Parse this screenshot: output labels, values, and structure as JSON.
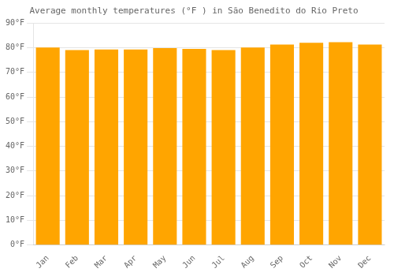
{
  "chart_data": {
    "type": "bar",
    "title": "Average monthly temperatures (°F ) in São Benedito do Rio Preto",
    "categories": [
      "Jan",
      "Feb",
      "Mar",
      "Apr",
      "May",
      "Jun",
      "Jul",
      "Aug",
      "Sep",
      "Oct",
      "Nov",
      "Dec"
    ],
    "values": [
      80.1,
      79.0,
      79.3,
      79.3,
      79.8,
      79.5,
      79.0,
      80.1,
      81.3,
      82.0,
      82.2,
      81.3
    ],
    "color": "#FFA500",
    "ylim": [
      0,
      90
    ],
    "yticks": [
      {
        "value": 0,
        "label": "0°F"
      },
      {
        "value": 10,
        "label": "10°F"
      },
      {
        "value": 20,
        "label": "20°F"
      },
      {
        "value": 30,
        "label": "30°F"
      },
      {
        "value": 40,
        "label": "40°F"
      },
      {
        "value": 50,
        "label": "50°F"
      },
      {
        "value": 60,
        "label": "60°F"
      },
      {
        "value": 70,
        "label": "70°F"
      },
      {
        "value": 80,
        "label": "80°F"
      },
      {
        "value": 90,
        "label": "90°F"
      }
    ],
    "grid": "y"
  }
}
